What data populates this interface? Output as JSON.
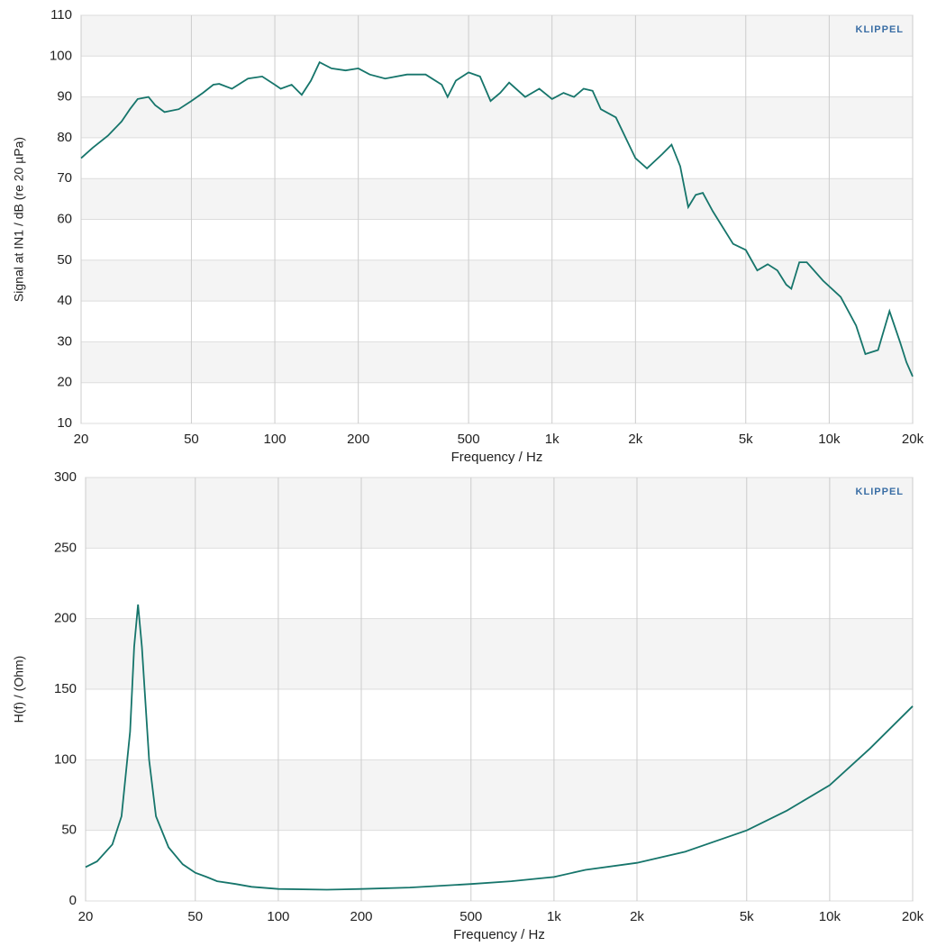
{
  "chart_data": [
    {
      "type": "line",
      "logo": "KLIPPEL",
      "xlabel": "Frequency / Hz",
      "ylabel": "Signal at IN1 / dB (re 20 µPa)",
      "xscale": "log",
      "grid": true,
      "color": "#16756b",
      "xlim": [
        20,
        20000
      ],
      "ylim": [
        10,
        110
      ],
      "xticks": [
        20,
        50,
        100,
        200,
        500,
        {
          "value": 1000,
          "label": "1k"
        },
        {
          "value": 2000,
          "label": "2k"
        },
        {
          "value": 5000,
          "label": "5k"
        },
        {
          "value": 10000,
          "label": "10k"
        },
        {
          "value": 20000,
          "label": "20k"
        }
      ],
      "yticks": [
        10,
        20,
        30,
        40,
        50,
        60,
        70,
        80,
        90,
        100,
        110
      ],
      "x": [
        20,
        22,
        25,
        28,
        30,
        32,
        35,
        37,
        40,
        45,
        50,
        55,
        60,
        63,
        70,
        80,
        90,
        100,
        105,
        115,
        125,
        135,
        145,
        160,
        180,
        200,
        220,
        250,
        300,
        350,
        400,
        420,
        450,
        500,
        550,
        600,
        650,
        700,
        800,
        900,
        1000,
        1100,
        1200,
        1300,
        1400,
        1500,
        1700,
        2000,
        2200,
        2500,
        2700,
        2900,
        3100,
        3300,
        3500,
        3800,
        4500,
        5000,
        5500,
        6000,
        6500,
        7000,
        7300,
        7800,
        8300,
        9500,
        11000,
        12500,
        13500,
        15000,
        16500,
        18000,
        19000,
        20000
      ],
      "values": [
        75,
        77.5,
        80.5,
        84,
        87,
        89.5,
        90,
        88,
        86.3,
        87,
        89,
        91,
        93,
        93.2,
        92,
        94.5,
        95,
        93,
        92,
        93,
        90.5,
        94,
        98.5,
        97,
        96.5,
        97,
        95.5,
        94.5,
        95.5,
        95.5,
        93,
        90,
        94,
        96,
        95,
        89,
        91,
        93.5,
        90,
        92,
        89.5,
        91,
        90,
        92,
        91.5,
        87,
        85,
        75,
        72.5,
        76,
        78.3,
        73,
        63,
        66,
        66.5,
        62,
        54,
        52.5,
        47.5,
        49,
        47.5,
        44,
        43,
        49.5,
        49.5,
        45,
        41,
        34,
        27,
        28,
        37.5,
        30,
        25,
        21.5
      ]
    },
    {
      "type": "line",
      "logo": "KLIPPEL",
      "xlabel": "Frequency / Hz",
      "ylabel": "H(f) / (Ohm)",
      "xscale": "log",
      "grid": true,
      "color": "#16756b",
      "xlim": [
        20,
        20000
      ],
      "ylim": [
        0,
        300
      ],
      "xticks": [
        20,
        50,
        100,
        200,
        500,
        {
          "value": 1000,
          "label": "1k"
        },
        {
          "value": 2000,
          "label": "2k"
        },
        {
          "value": 5000,
          "label": "5k"
        },
        {
          "value": 10000,
          "label": "10k"
        },
        {
          "value": 20000,
          "label": "20k"
        }
      ],
      "yticks": [
        0,
        50,
        100,
        150,
        200,
        250,
        300
      ],
      "x": [
        20,
        22,
        25,
        27,
        29,
        30,
        31,
        32,
        34,
        36,
        40,
        45,
        50,
        55,
        60,
        70,
        80,
        100,
        150,
        200,
        300,
        500,
        700,
        1000,
        1300,
        2000,
        3000,
        5000,
        7000,
        10000,
        14000,
        20000
      ],
      "values": [
        24,
        28,
        40,
        60,
        120,
        180,
        210,
        180,
        100,
        60,
        38,
        26,
        20,
        17,
        14,
        12,
        10,
        8.5,
        8,
        8.5,
        9.5,
        12,
        14,
        17,
        22,
        27,
        35,
        50,
        64,
        82,
        108,
        138
      ]
    }
  ]
}
